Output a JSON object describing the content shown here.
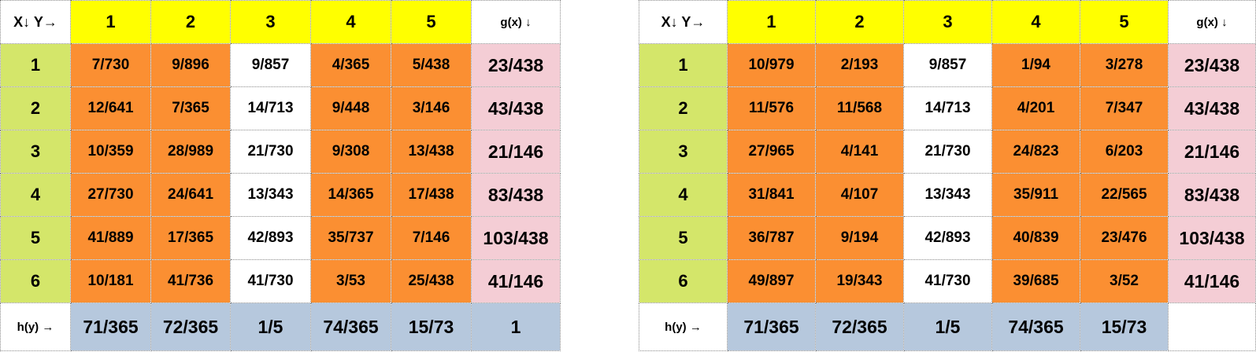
{
  "left": {
    "corner": "X↓ Y→",
    "y_headers": [
      "1",
      "2",
      "3",
      "4",
      "5"
    ],
    "g_header": "g(x) ↓",
    "rows": [
      {
        "x": "1",
        "p": [
          "7/730",
          "9/896",
          "9/857",
          "4/365",
          "5/438"
        ],
        "g": "23/438"
      },
      {
        "x": "2",
        "p": [
          "12/641",
          "7/365",
          "14/713",
          "9/448",
          "3/146"
        ],
        "g": "43/438"
      },
      {
        "x": "3",
        "p": [
          "10/359",
          "28/989",
          "21/730",
          "9/308",
          "13/438"
        ],
        "g": "21/146"
      },
      {
        "x": "4",
        "p": [
          "27/730",
          "24/641",
          "13/343",
          "14/365",
          "17/438"
        ],
        "g": "83/438"
      },
      {
        "x": "5",
        "p": [
          "41/889",
          "17/365",
          "42/893",
          "35/737",
          "7/146"
        ],
        "g": "103/438"
      },
      {
        "x": "6",
        "p": [
          "10/181",
          "41/736",
          "41/730",
          "3/53",
          "25/438"
        ],
        "g": "41/146"
      }
    ],
    "h_label": "h(y) →",
    "h": [
      "71/365",
      "72/365",
      "1/5",
      "74/365",
      "15/73"
    ],
    "total": "1"
  },
  "right": {
    "corner": "X↓ Y→",
    "y_headers": [
      "1",
      "2",
      "3",
      "4",
      "5"
    ],
    "g_header": "g(x) ↓",
    "rows": [
      {
        "x": "1",
        "p": [
          "10/979",
          "2/193",
          "9/857",
          "1/94",
          "3/278"
        ],
        "g": "23/438"
      },
      {
        "x": "2",
        "p": [
          "11/576",
          "11/568",
          "14/713",
          "4/201",
          "7/347"
        ],
        "g": "43/438"
      },
      {
        "x": "3",
        "p": [
          "27/965",
          "4/141",
          "21/730",
          "24/823",
          "6/203"
        ],
        "g": "21/146"
      },
      {
        "x": "4",
        "p": [
          "31/841",
          "4/107",
          "13/343",
          "35/911",
          "22/565"
        ],
        "g": "83/438"
      },
      {
        "x": "5",
        "p": [
          "36/787",
          "9/194",
          "42/893",
          "40/839",
          "23/476"
        ],
        "g": "103/438"
      },
      {
        "x": "6",
        "p": [
          "49/897",
          "19/343",
          "41/730",
          "39/685",
          "3/52"
        ],
        "g": "41/146"
      }
    ],
    "h_label": "h(y) →",
    "h": [
      "71/365",
      "72/365",
      "1/5",
      "74/365",
      "15/73"
    ]
  },
  "colors": {
    "y_header": "#ffff00",
    "x_header": "#d4e66a",
    "joint_cell": "#fb8f32",
    "highlight_column": "#ffffff",
    "g_column": "#f4cdd5",
    "h_row": "#b6c8dd"
  }
}
